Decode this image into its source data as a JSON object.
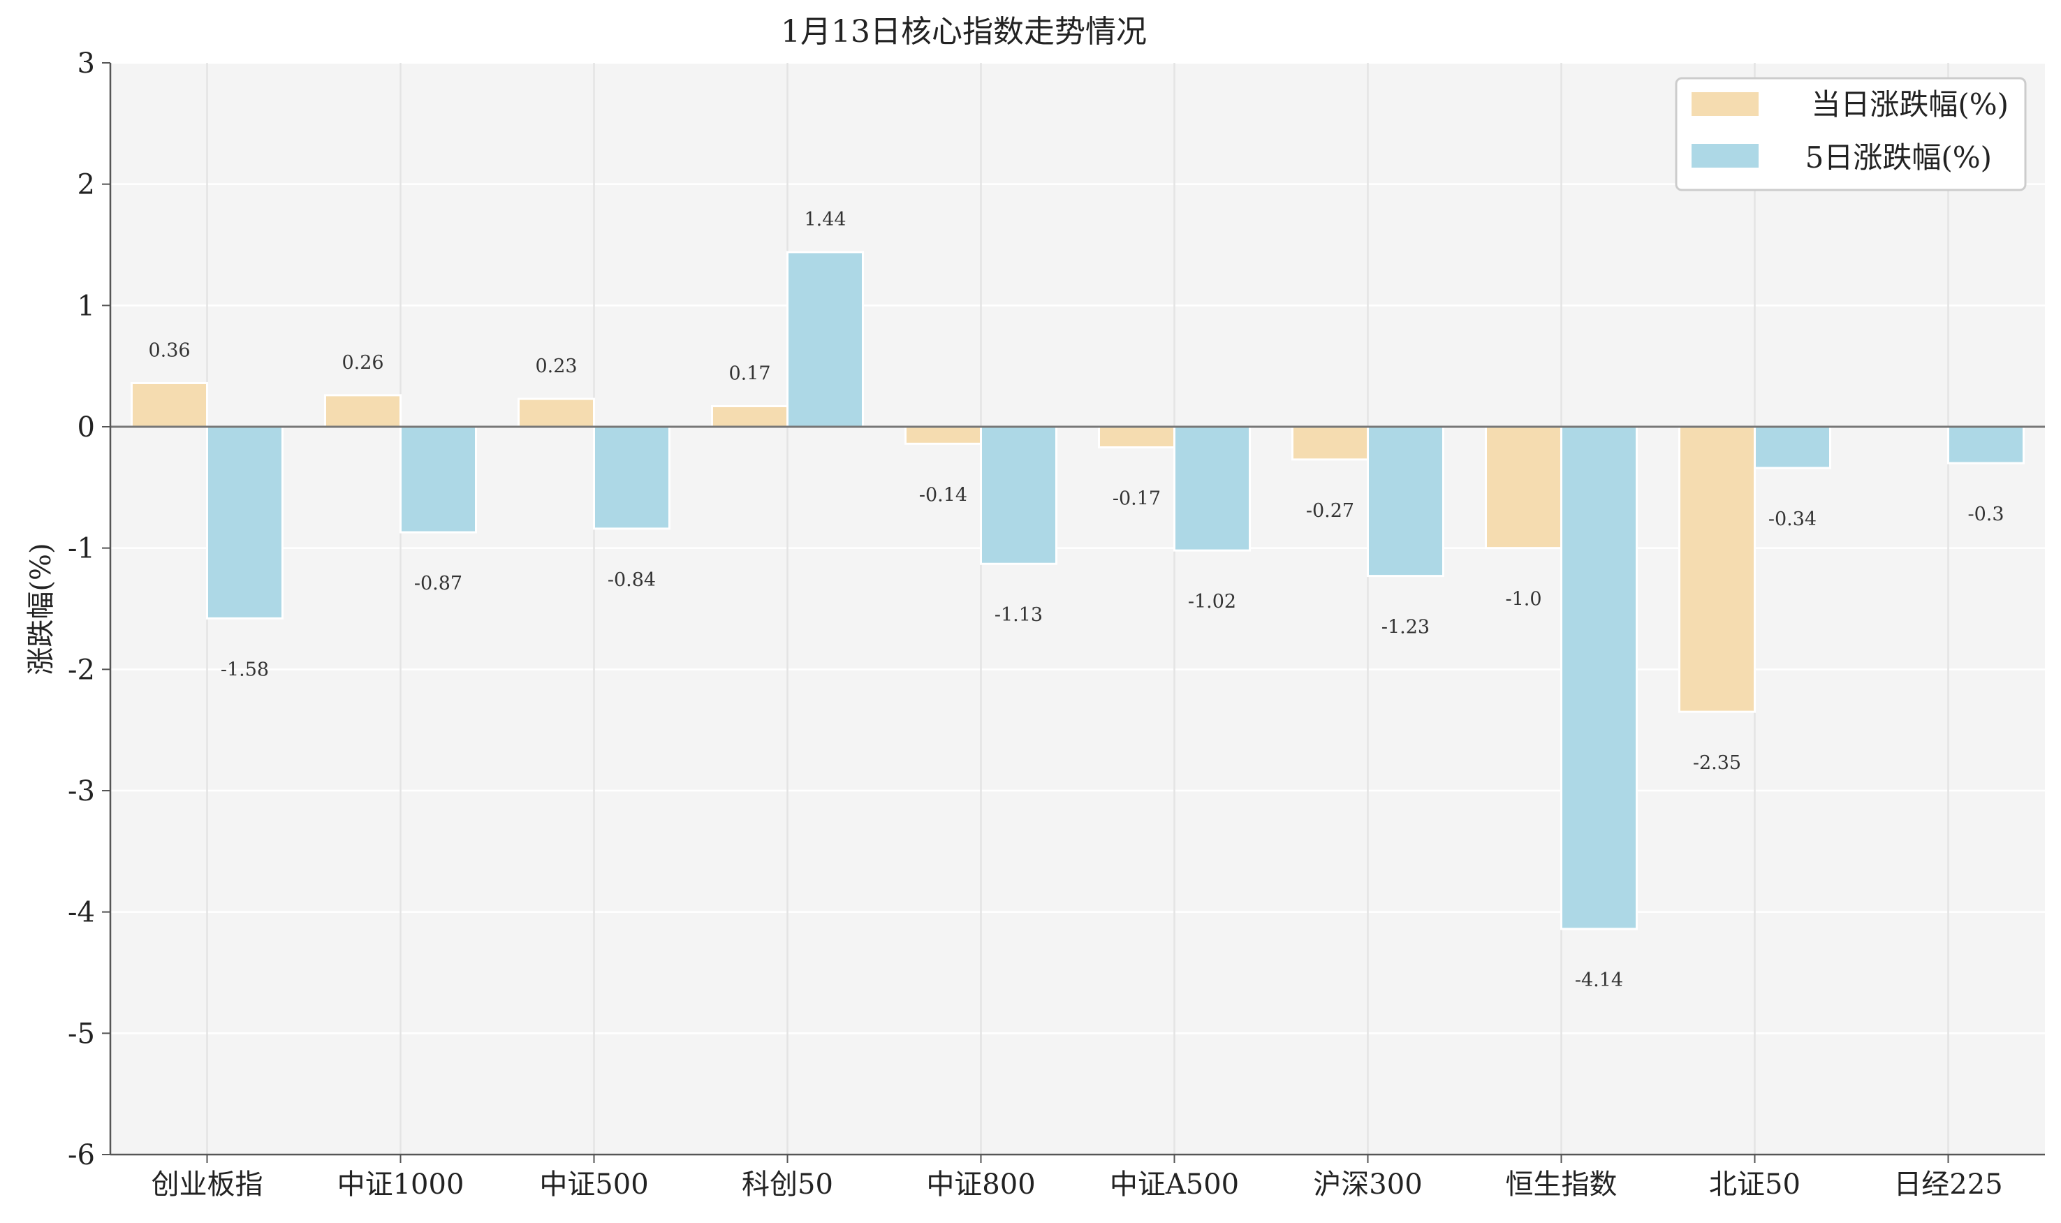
{
  "chart_data": {
    "type": "bar",
    "title": "1月13日核心指数走势情况",
    "xlabel": "",
    "ylabel": "涨跌幅(%)",
    "ylim": [
      -6,
      3
    ],
    "yticks": [
      3,
      2,
      1,
      0,
      -1,
      -2,
      -3,
      -4,
      -5,
      -6
    ],
    "grid": true,
    "legend_position": "top-right",
    "categories": [
      "创业板指",
      "中证1000",
      "中证500",
      "科创50",
      "中证800",
      "中证A500",
      "沪深300",
      "恒生指数",
      "北证50",
      "日经225"
    ],
    "series": [
      {
        "name": "当日涨跌幅(%)",
        "color": "#f5dcb0",
        "values": [
          0.36,
          0.26,
          0.23,
          0.17,
          -0.14,
          -0.17,
          -0.27,
          -1.0,
          -2.35,
          null
        ],
        "labels": [
          "0.36",
          "0.26",
          "0.23",
          "0.17",
          "-0.14",
          "-0.17",
          "-0.27",
          "-1.0",
          "-2.35",
          ""
        ]
      },
      {
        "name": "5日涨跌幅(%)",
        "color": "#add8e6",
        "values": [
          -1.58,
          -0.87,
          -0.84,
          1.44,
          -1.13,
          -1.02,
          -1.23,
          -4.14,
          -0.34,
          -0.3
        ],
        "labels": [
          "-1.58",
          "-0.87",
          "-0.84",
          "1.44",
          "-1.13",
          "-1.02",
          "-1.23",
          "-4.14",
          "-0.34",
          "-0.3"
        ]
      }
    ]
  }
}
